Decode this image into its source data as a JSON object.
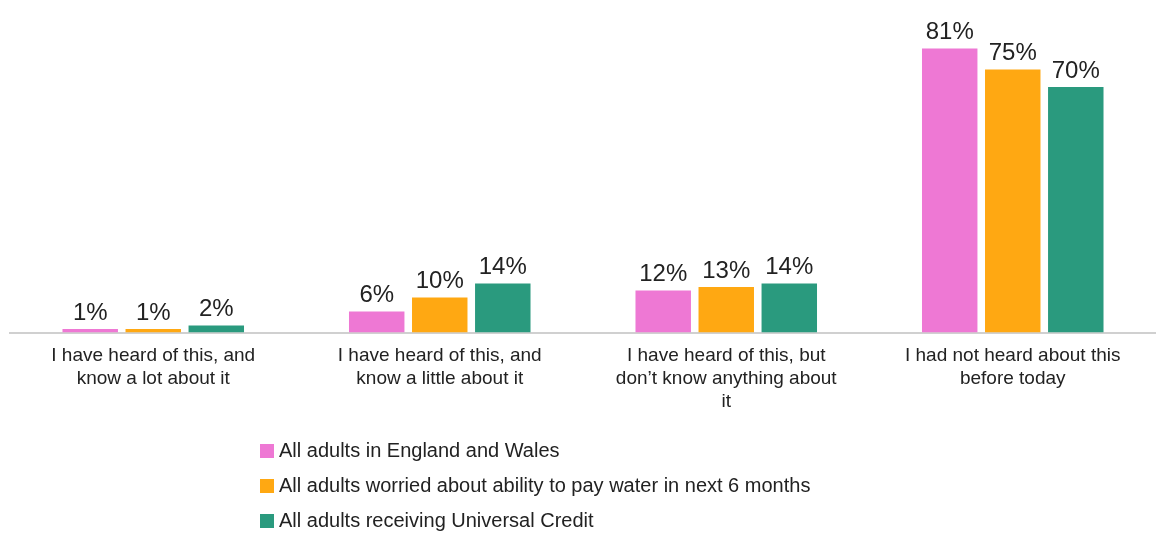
{
  "chart_data": {
    "type": "bar",
    "categories": [
      "I have heard of this, and know a lot about it",
      "I have heard of this, and know a little about it",
      "I have heard of this, but don’t know anything about it",
      "I had not heard about this before today"
    ],
    "series": [
      {
        "name": "All adults in England and Wales",
        "color": "#ee78d4",
        "values": [
          1,
          6,
          12,
          81
        ],
        "value_labels": [
          "1%",
          "6%",
          "12%",
          "81%"
        ]
      },
      {
        "name": "All adults worried about ability to pay water in next 6 months",
        "color": "#ffa812",
        "values": [
          1,
          10,
          13,
          75
        ],
        "value_labels": [
          "1%",
          "10%",
          "13%",
          "75%"
        ]
      },
      {
        "name": "All adults receiving Universal Credit",
        "color": "#2a9a7e",
        "values": [
          2,
          14,
          14,
          70
        ],
        "value_labels": [
          "2%",
          "14%",
          "14%",
          "70%"
        ]
      }
    ],
    "legend": "bottom",
    "grid": false,
    "tick_labels": "x"
  }
}
